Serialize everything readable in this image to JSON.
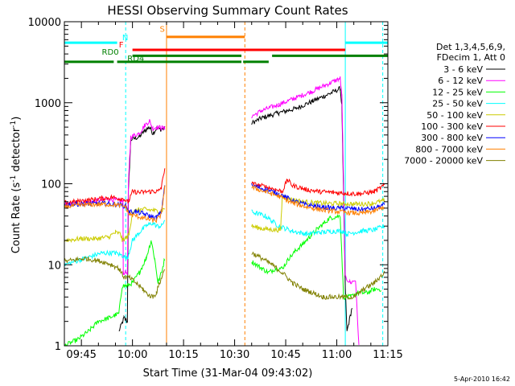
{
  "chart_data": {
    "type": "line",
    "title": "HESSI Observing Summary Count Rates",
    "xlabel": "Start Time (31-Mar-04 09:43:02)",
    "ylabel_main": "Count Rate (s",
    "ylabel_sup1": "-1",
    "ylabel_mid": " detector",
    "ylabel_sup2": "-1",
    "ylabel_end": ")",
    "x_range_minutes": [
      -3.0,
      92.0
    ],
    "yscale": "log",
    "ylim": [
      1,
      10000
    ],
    "x_ticks": [
      {
        "t": 2,
        "label": "09:45"
      },
      {
        "t": 17,
        "label": "10:00"
      },
      {
        "t": 32,
        "label": "10:15"
      },
      {
        "t": 47,
        "label": "10:30"
      },
      {
        "t": 62,
        "label": "10:45"
      },
      {
        "t": 77,
        "label": "11:00"
      },
      {
        "t": 92,
        "label": "11:15"
      }
    ],
    "y_ticks": [
      {
        "v": 1,
        "label": "1"
      },
      {
        "v": 10,
        "label": "10"
      },
      {
        "v": 100,
        "label": "100"
      },
      {
        "v": 1000,
        "label": "1000"
      },
      {
        "v": 10000,
        "label": "10000"
      }
    ],
    "legend_header": [
      "Det 1,3,4,5,6,9,",
      "FDecim 1, Att 0"
    ],
    "series": [
      {
        "name": "3 - 6 keV",
        "color": "#000000",
        "points": [
          [
            13,
            1.5
          ],
          [
            14.5,
            2.2
          ],
          [
            15.5,
            2.0
          ],
          [
            15.8,
            80
          ],
          [
            16.5,
            350
          ],
          [
            19,
            380
          ],
          [
            20.5,
            450
          ],
          [
            22,
            500
          ],
          [
            23,
            420
          ],
          [
            24,
            480
          ],
          [
            25.5,
            470
          ],
          [
            26.5,
            480
          ],
          [
            52,
            560
          ],
          [
            55,
            650
          ],
          [
            60,
            750
          ],
          [
            65,
            850
          ],
          [
            70,
            1050
          ],
          [
            75,
            1300
          ],
          [
            78,
            1500
          ],
          [
            78.5,
            900
          ],
          [
            79.5,
            5
          ],
          [
            80,
            1.5
          ],
          [
            81.5,
            3
          ]
        ]
      },
      {
        "name": "6 - 12 keV",
        "color": "#ff00ff",
        "points": [
          [
            -3,
            55
          ],
          [
            5,
            60
          ],
          [
            10,
            65
          ],
          [
            13,
            62
          ],
          [
            14.2,
            60
          ],
          [
            14.3,
            8
          ],
          [
            15.5,
            8
          ],
          [
            15.8,
            100
          ],
          [
            16.5,
            380
          ],
          [
            19,
            420
          ],
          [
            20.5,
            520
          ],
          [
            22,
            600
          ],
          [
            23,
            480
          ],
          [
            24,
            500
          ],
          [
            25.5,
            490
          ],
          [
            26.5,
            480
          ],
          [
            52,
            680
          ],
          [
            55,
            800
          ],
          [
            60,
            950
          ],
          [
            65,
            1150
          ],
          [
            70,
            1400
          ],
          [
            75,
            1750
          ],
          [
            78,
            2000
          ],
          [
            78.5,
            1200
          ],
          [
            79.5,
            7
          ],
          [
            81,
            6
          ],
          [
            82.5,
            6.5
          ],
          [
            83.5,
            1
          ]
        ]
      },
      {
        "name": "12 - 25 keV",
        "color": "#00ff00",
        "points": [
          [
            -3,
            1
          ],
          [
            1,
            1.2
          ],
          [
            4,
            1.5
          ],
          [
            7,
            2
          ],
          [
            10,
            2.2
          ],
          [
            13,
            2.5
          ],
          [
            14,
            5.5
          ],
          [
            15.5,
            5.5
          ],
          [
            17,
            6
          ],
          [
            19,
            8
          ],
          [
            21,
            12
          ],
          [
            22.5,
            20
          ],
          [
            23.5,
            12
          ],
          [
            24.5,
            6
          ],
          [
            25.5,
            8
          ],
          [
            26.5,
            12
          ],
          [
            52,
            11
          ],
          [
            55,
            9
          ],
          [
            57,
            8
          ],
          [
            59,
            9
          ],
          [
            61,
            9
          ],
          [
            63,
            12
          ],
          [
            65,
            15
          ],
          [
            67,
            18
          ],
          [
            69,
            22
          ],
          [
            71,
            27
          ],
          [
            73,
            32
          ],
          [
            75,
            38
          ],
          [
            78,
            40
          ],
          [
            79,
            4
          ],
          [
            81,
            4
          ],
          [
            83,
            4.5
          ],
          [
            86,
            4.5
          ],
          [
            88,
            5
          ],
          [
            90,
            5
          ]
        ]
      },
      {
        "name": "25 - 50 keV",
        "color": "#00ffff",
        "points": [
          [
            -3,
            10
          ],
          [
            3,
            12
          ],
          [
            8,
            14
          ],
          [
            12,
            14
          ],
          [
            14,
            13
          ],
          [
            15.5,
            12
          ],
          [
            17,
            20
          ],
          [
            19,
            25
          ],
          [
            21,
            30
          ],
          [
            23,
            33
          ],
          [
            24,
            30
          ],
          [
            25.5,
            30
          ],
          [
            26.5,
            36
          ],
          [
            52,
            45
          ],
          [
            56,
            40
          ],
          [
            60,
            30
          ],
          [
            64,
            26
          ],
          [
            68,
            24
          ],
          [
            72,
            25
          ],
          [
            76,
            26
          ],
          [
            79,
            26
          ],
          [
            80,
            24
          ],
          [
            84,
            26
          ],
          [
            88,
            27
          ],
          [
            91,
            30
          ]
        ]
      },
      {
        "name": "50 - 100 keV",
        "color": "#cccc00",
        "points": [
          [
            -3,
            20
          ],
          [
            2,
            21
          ],
          [
            6,
            21
          ],
          [
            10,
            22
          ],
          [
            12,
            25
          ],
          [
            13.5,
            24
          ],
          [
            14,
            20
          ],
          [
            15.5,
            22
          ],
          [
            16,
            24
          ],
          [
            17,
            45
          ],
          [
            19,
            48
          ],
          [
            21,
            48
          ],
          [
            23,
            47
          ],
          [
            25,
            45
          ],
          [
            26.5,
            50
          ],
          [
            52,
            30
          ],
          [
            55,
            28
          ],
          [
            58,
            27
          ],
          [
            60.5,
            27
          ],
          [
            61,
            70
          ],
          [
            63,
            65
          ],
          [
            67,
            60
          ],
          [
            71,
            58
          ],
          [
            75,
            57
          ],
          [
            79,
            57
          ],
          [
            83,
            56
          ],
          [
            87,
            57
          ],
          [
            91,
            62
          ]
        ]
      },
      {
        "name": "100 - 300 keV",
        "color": "#ff0000",
        "points": [
          [
            -3,
            58
          ],
          [
            3,
            62
          ],
          [
            7,
            65
          ],
          [
            11,
            68
          ],
          [
            13,
            66
          ],
          [
            14.5,
            65
          ],
          [
            15.5,
            60
          ],
          [
            16,
            62
          ],
          [
            17,
            80
          ],
          [
            19,
            78
          ],
          [
            21,
            79
          ],
          [
            23,
            81
          ],
          [
            24.5,
            80
          ],
          [
            25.5,
            90
          ],
          [
            26.5,
            160
          ],
          [
            52,
            100
          ],
          [
            56,
            92
          ],
          [
            59,
            85
          ],
          [
            61,
            80
          ],
          [
            62.5,
            112
          ],
          [
            64,
            95
          ],
          [
            68,
            85
          ],
          [
            72,
            80
          ],
          [
            76,
            78
          ],
          [
            80,
            76
          ],
          [
            84,
            75
          ],
          [
            88,
            80
          ],
          [
            91,
            95
          ]
        ]
      },
      {
        "name": "300 - 800 keV",
        "color": "#0000ff",
        "points": [
          [
            -3,
            55
          ],
          [
            4,
            57
          ],
          [
            9,
            57
          ],
          [
            13,
            55
          ],
          [
            15,
            53
          ],
          [
            16,
            45
          ],
          [
            18,
            45
          ],
          [
            20,
            43
          ],
          [
            22,
            40
          ],
          [
            24,
            38
          ],
          [
            25.5,
            45
          ],
          [
            26.5,
            100
          ],
          [
            52,
            95
          ],
          [
            56,
            85
          ],
          [
            60,
            75
          ],
          [
            64,
            62
          ],
          [
            68,
            55
          ],
          [
            72,
            52
          ],
          [
            76,
            50
          ],
          [
            80,
            50
          ],
          [
            84,
            48
          ],
          [
            88,
            50
          ],
          [
            91,
            55
          ]
        ]
      },
      {
        "name": "800 - 7000 keV",
        "color": "#ff8000",
        "points": [
          [
            -3,
            52
          ],
          [
            3,
            55
          ],
          [
            8,
            56
          ],
          [
            12,
            55
          ],
          [
            15,
            52
          ],
          [
            16,
            42
          ],
          [
            18,
            40
          ],
          [
            20,
            38
          ],
          [
            22,
            36
          ],
          [
            24,
            35
          ],
          [
            25.5,
            42
          ],
          [
            26.5,
            95
          ],
          [
            52,
            90
          ],
          [
            56,
            80
          ],
          [
            60,
            70
          ],
          [
            64,
            58
          ],
          [
            68,
            52
          ],
          [
            72,
            48
          ],
          [
            76,
            46
          ],
          [
            80,
            44
          ],
          [
            84,
            43
          ],
          [
            88,
            46
          ],
          [
            91,
            52
          ]
        ]
      },
      {
        "name": "7000 - 20000 keV",
        "color": "#808000",
        "points": [
          [
            -3,
            11
          ],
          [
            3,
            12
          ],
          [
            8,
            11
          ],
          [
            11,
            10
          ],
          [
            13,
            9
          ],
          [
            14.5,
            7
          ],
          [
            16,
            7
          ],
          [
            18,
            6
          ],
          [
            20,
            5
          ],
          [
            21,
            4.5
          ],
          [
            22,
            4.2
          ],
          [
            23,
            4.0
          ],
          [
            24,
            4.5
          ],
          [
            25,
            6
          ],
          [
            26.5,
            9
          ],
          [
            52,
            14
          ],
          [
            55,
            12
          ],
          [
            58,
            10
          ],
          [
            61,
            8
          ],
          [
            64,
            6
          ],
          [
            67,
            5
          ],
          [
            70,
            4.5
          ],
          [
            73,
            4
          ],
          [
            76,
            4
          ],
          [
            79,
            4
          ],
          [
            82,
            4
          ],
          [
            85,
            5
          ],
          [
            88,
            6
          ],
          [
            91,
            8
          ]
        ]
      }
    ],
    "flags": [
      {
        "label": "N",
        "color": "#00ffff",
        "y": 5500,
        "segments": [
          [
            -3,
            12.5
          ],
          [
            79.5,
            92
          ]
        ],
        "label_t": 14,
        "label_y": 5900
      },
      {
        "label": "S",
        "color": "#ff8000",
        "y": 6500,
        "segments": [
          [
            27,
            50
          ]
        ],
        "label_t": 25,
        "label_y": 7500
      },
      {
        "label": "F",
        "color": "#ff0000",
        "y": 4500,
        "segments": [
          [
            17,
            79.5
          ]
        ],
        "label_t": 13,
        "label_y": 4800
      },
      {
        "label": "RD0",
        "color": "#008000",
        "y": 3800,
        "segments": [
          [
            17,
            49
          ],
          [
            58,
            92
          ]
        ],
        "label_t": 8,
        "label_y": 3900
      },
      {
        "label": "RD4",
        "color": "#008000",
        "y": 3200,
        "segments": [
          [
            -3,
            11.5
          ],
          [
            12.5,
            49
          ],
          [
            49.5,
            57
          ]
        ],
        "label_t": 15.5,
        "label_y": 3250
      }
    ],
    "vlines": [
      {
        "t": -3.0,
        "color": "#00ffff",
        "style": "solid"
      },
      {
        "t": 15.0,
        "color": "#00ffff",
        "style": "dashed"
      },
      {
        "t": 27.0,
        "color": "#ff8000",
        "style": "solid"
      },
      {
        "t": 50.0,
        "color": "#ff8000",
        "style": "dashed"
      },
      {
        "t": 79.5,
        "color": "#00ffff",
        "style": "solid"
      },
      {
        "t": 90.5,
        "color": "#00ffff",
        "style": "dashed"
      }
    ],
    "gap": [
      27.0,
      52.0
    ]
  },
  "footer": {
    "date_stamp": "5-Apr-2010 16:42"
  }
}
